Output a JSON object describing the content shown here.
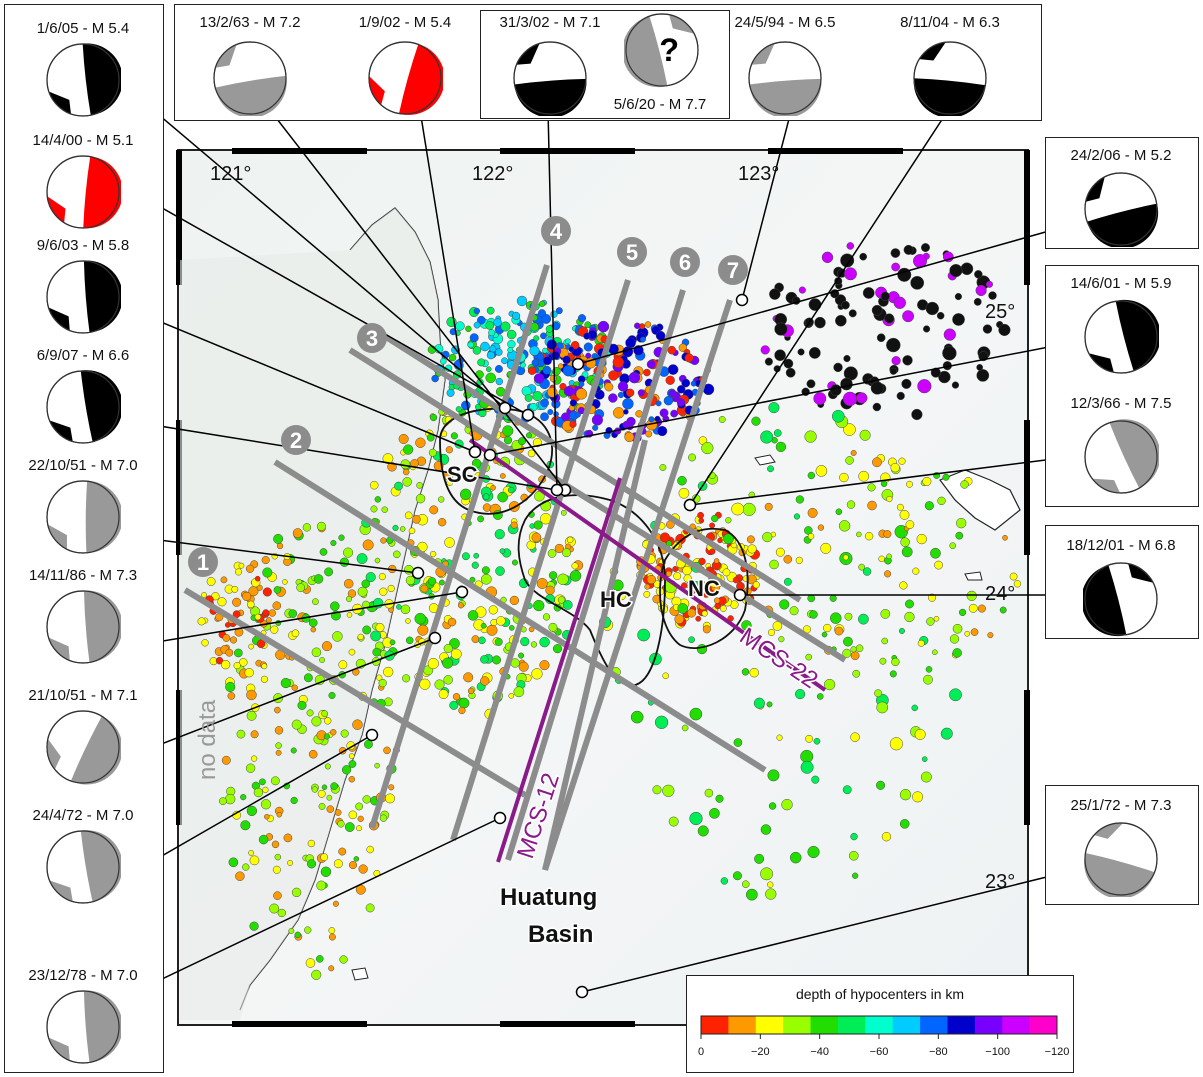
{
  "mechanisms": {
    "left": [
      {
        "label": "1/6/05 - M 5.4",
        "color": "#000000"
      },
      {
        "label": "14/4/00 - M 5.1",
        "color": "#ff0000"
      },
      {
        "label": "9/6/03 - M 5.8",
        "color": "#000000"
      },
      {
        "label": "6/9/07 - M 6.6",
        "color": "#000000"
      },
      {
        "label": "22/10/51 - M 7.0",
        "color": "#999999"
      },
      {
        "label": "14/11/86 - M 7.3",
        "color": "#999999"
      },
      {
        "label": "21/10/51 - M 7.1",
        "color": "#999999"
      },
      {
        "label": "24/4/72 - M 7.0",
        "color": "#999999"
      },
      {
        "label": "23/12/78 - M 7.0",
        "color": "#999999"
      }
    ],
    "top": [
      {
        "label": "13/2/63 - M 7.2",
        "color": "#999999"
      },
      {
        "label": "1/9/02 - M 5.4",
        "color": "#ff0000"
      },
      {
        "label": "31/3/02 - M 7.1",
        "color": "#000000"
      },
      {
        "label": "5/6/20 - M 7.7",
        "color": "#999999",
        "mark": "?"
      },
      {
        "label": "24/5/94 - M 6.5",
        "color": "#999999"
      },
      {
        "label": "8/11/04 - M 6.3",
        "color": "#000000"
      }
    ],
    "right": [
      {
        "label": "24/2/06 - M 5.2",
        "color": "#000000"
      },
      {
        "label": "14/6/01 - M 5.9",
        "color": "#000000"
      },
      {
        "label": "12/3/66 - M 7.5",
        "color": "#999999"
      },
      {
        "label": "18/12/01 - M 6.8",
        "color": "#000000"
      },
      {
        "label": "25/1/72 - M 7.3",
        "color": "#999999"
      }
    ]
  },
  "map": {
    "lon_labels": [
      "121°",
      "122°",
      "123°"
    ],
    "lat_labels": [
      "25°",
      "24°",
      "23°"
    ],
    "profiles": [
      "1",
      "2",
      "3",
      "4",
      "5",
      "6",
      "7"
    ],
    "mcs_lines": [
      "MCS-12",
      "MCS-22"
    ],
    "clusters": [
      "SC",
      "HC",
      "NC"
    ],
    "basin_label_line1": "Huatung",
    "basin_label_line2": "Basin",
    "no_data_label": "no data",
    "colors": {
      "profile_gray": "#8c8c8c",
      "mcs_purple": "#8a1a8a"
    }
  },
  "legend": {
    "title": "depth of hypocenters in km",
    "colors": [
      "#ff2200",
      "#ff9900",
      "#ffff00",
      "#99ff00",
      "#22dd00",
      "#00ee55",
      "#00ffcc",
      "#00ccff",
      "#0066ff",
      "#0000cc",
      "#7700ff",
      "#cc00ff",
      "#ff00cc"
    ],
    "ticks": [
      "0",
      "−20",
      "−40",
      "−60",
      "−80",
      "−100",
      "−120"
    ]
  }
}
